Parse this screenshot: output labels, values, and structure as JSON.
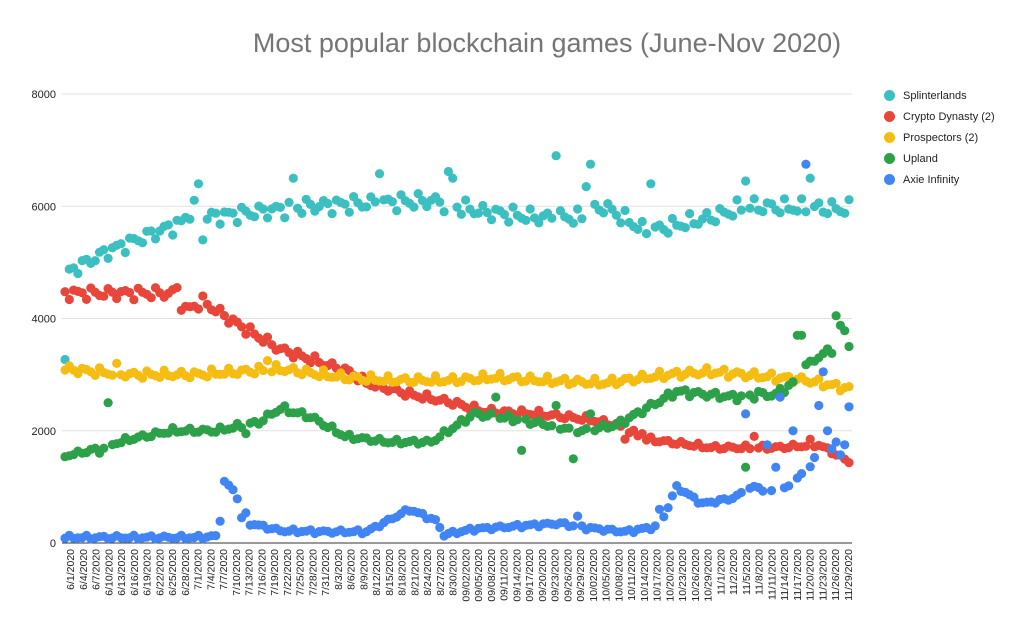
{
  "chart_data": {
    "type": "scatter",
    "title": "Most popular blockchain games (June-Nov 2020)",
    "xlabel": "",
    "ylabel": "",
    "ylim": [
      0,
      8000
    ],
    "y_ticks": [
      "0",
      "2000",
      "4000",
      "6000",
      "8000"
    ],
    "x_range": [
      "2020-06-01",
      "2020-11-30"
    ],
    "x_tick_labels": [
      "6/1/2020",
      "6/4/2020",
      "6/7/2020",
      "6/10/2020",
      "6/13/2020",
      "6/16/2020",
      "6/19/2020",
      "6/22/2020",
      "6/25/2020",
      "6/28/2020",
      "7/1/2020",
      "7/4/2020",
      "7/7/2020",
      "7/10/2020",
      "7/13/2020",
      "7/16/2020",
      "7/19/2020",
      "7/22/2020",
      "7/25/2020",
      "7/28/2020",
      "7/31/2020",
      "8/3/2020",
      "8/6/2020",
      "8/9/2020",
      "8/12/2020",
      "8/15/2020",
      "8/18/2020",
      "8/21/2020",
      "8/24/2020",
      "8/27/2020",
      "8/30/2020",
      "09/02/2020",
      "09/05/2020",
      "09/08/2020",
      "09/11/2020",
      "09/14/2020",
      "09/17/2020",
      "09/20/2020",
      "09/23/2020",
      "09/26/2020",
      "09/29/2020",
      "10/02/2020",
      "10/05/2020",
      "10/08/2020",
      "10/11/2020",
      "10/14/2020",
      "10/17/2020",
      "10/20/2020",
      "10/23/2020",
      "10/26/2020",
      "10/29/2020",
      "11/1/2020",
      "11/2/2020",
      "11/5/2020",
      "11/8/2020",
      "11/11/2020",
      "11/14/2020",
      "11/17/2020",
      "11/20/2020",
      "11/23/2020",
      "11/26/2020",
      "11/29/2020"
    ],
    "grid": true,
    "legend_position": "right",
    "series": [
      {
        "name": "Splinterlands",
        "color": "#3CBFC0",
        "anchors": [
          [
            0,
            4800
          ],
          [
            10,
            5200
          ],
          [
            20,
            5500
          ],
          [
            27,
            5700
          ],
          [
            30,
            6000
          ],
          [
            32,
            5800
          ],
          [
            45,
            5900
          ],
          [
            56,
            6000
          ],
          [
            70,
            6050
          ],
          [
            85,
            6100
          ],
          [
            97,
            5900
          ],
          [
            110,
            5800
          ],
          [
            120,
            5800
          ],
          [
            125,
            6000
          ],
          [
            135,
            5550
          ],
          [
            150,
            5800
          ],
          [
            158,
            6000
          ],
          [
            182,
            5950
          ]
        ],
        "spikes": [
          [
            0,
            3270
          ],
          [
            31,
            6400
          ],
          [
            32,
            5400
          ],
          [
            53,
            6500
          ],
          [
            73,
            6580
          ],
          [
            89,
            6620
          ],
          [
            90,
            6500
          ],
          [
            114,
            6900
          ],
          [
            121,
            6350
          ],
          [
            122,
            6750
          ],
          [
            136,
            6400
          ],
          [
            158,
            6450
          ],
          [
            173,
            6500
          ]
        ]
      },
      {
        "name": "Crypto Dynasty (2)",
        "color": "#E8463A",
        "anchors": [
          [
            0,
            4450
          ],
          [
            10,
            4450
          ],
          [
            25,
            4450
          ],
          [
            28,
            4150
          ],
          [
            32,
            4300
          ],
          [
            40,
            3900
          ],
          [
            50,
            3450
          ],
          [
            60,
            3200
          ],
          [
            66,
            3050
          ],
          [
            70,
            2850
          ],
          [
            80,
            2650
          ],
          [
            90,
            2500
          ],
          [
            97,
            2350
          ],
          [
            110,
            2300
          ],
          [
            122,
            2200
          ],
          [
            128,
            2100
          ],
          [
            135,
            1850
          ],
          [
            150,
            1700
          ],
          [
            165,
            1700
          ],
          [
            175,
            1750
          ],
          [
            182,
            1450
          ]
        ],
        "spikes": [
          [
            26,
            4550
          ],
          [
            130,
            1850
          ],
          [
            134,
            1950
          ],
          [
            160,
            1900
          ],
          [
            173,
            1850
          ]
        ]
      },
      {
        "name": "Prospectors (2)",
        "color": "#F5BD12",
        "anchors": [
          [
            0,
            3100
          ],
          [
            15,
            3000
          ],
          [
            30,
            3000
          ],
          [
            40,
            3050
          ],
          [
            50,
            3100
          ],
          [
            60,
            3000
          ],
          [
            65,
            2950
          ],
          [
            75,
            2900
          ],
          [
            90,
            2900
          ],
          [
            100,
            2950
          ],
          [
            110,
            2900
          ],
          [
            125,
            2850
          ],
          [
            140,
            3000
          ],
          [
            150,
            3050
          ],
          [
            165,
            2950
          ],
          [
            172,
            2900
          ],
          [
            182,
            2750
          ]
        ],
        "spikes": [
          [
            12,
            3200
          ],
          [
            47,
            3250
          ]
        ]
      },
      {
        "name": "Upland",
        "color": "#2CA14A",
        "anchors": [
          [
            0,
            1550
          ],
          [
            6,
            1650
          ],
          [
            15,
            1850
          ],
          [
            25,
            2000
          ],
          [
            35,
            2000
          ],
          [
            45,
            2150
          ],
          [
            50,
            2400
          ],
          [
            57,
            2250
          ],
          [
            65,
            1900
          ],
          [
            75,
            1800
          ],
          [
            85,
            1800
          ],
          [
            95,
            2300
          ],
          [
            105,
            2200
          ],
          [
            120,
            2000
          ],
          [
            128,
            2100
          ],
          [
            135,
            2400
          ],
          [
            142,
            2700
          ],
          [
            155,
            2600
          ],
          [
            165,
            2650
          ],
          [
            170,
            2900
          ],
          [
            172,
            3150
          ],
          [
            178,
            3450
          ],
          [
            180,
            3850
          ],
          [
            182,
            3600
          ]
        ],
        "spikes": [
          [
            8,
            1600
          ],
          [
            10,
            2500
          ],
          [
            42,
            1950
          ],
          [
            100,
            2600
          ],
          [
            106,
            1650
          ],
          [
            114,
            2450
          ],
          [
            118,
            1500
          ],
          [
            122,
            2300
          ],
          [
            158,
            1350
          ],
          [
            161,
            2700
          ],
          [
            170,
            3700
          ],
          [
            171,
            3700
          ],
          [
            175,
            3300
          ],
          [
            179,
            4050
          ]
        ]
      },
      {
        "name": "Axie Infinity",
        "color": "#4185F4",
        "anchors": [
          [
            0,
            100
          ],
          [
            10,
            100
          ],
          [
            20,
            100
          ],
          [
            30,
            100
          ],
          [
            35,
            120
          ],
          [
            38,
            1000
          ],
          [
            40,
            800
          ],
          [
            43,
            350
          ],
          [
            50,
            220
          ],
          [
            60,
            200
          ],
          [
            70,
            200
          ],
          [
            80,
            600
          ],
          [
            86,
            400
          ],
          [
            88,
            150
          ],
          [
            95,
            250
          ],
          [
            105,
            300
          ],
          [
            115,
            350
          ],
          [
            120,
            280
          ],
          [
            130,
            200
          ],
          [
            138,
            300
          ],
          [
            142,
            1000
          ],
          [
            148,
            700
          ],
          [
            155,
            800
          ],
          [
            160,
            1000
          ],
          [
            165,
            900
          ],
          [
            168,
            1000
          ],
          [
            172,
            1300
          ],
          [
            176,
            1700
          ],
          [
            180,
            1600
          ],
          [
            182,
            2400
          ]
        ],
        "spikes": [
          [
            37,
            1100
          ],
          [
            39,
            950
          ],
          [
            41,
            450
          ],
          [
            119,
            480
          ],
          [
            138,
            600
          ],
          [
            158,
            2300
          ],
          [
            163,
            1750
          ],
          [
            165,
            1350
          ],
          [
            166,
            2600
          ],
          [
            169,
            2000
          ],
          [
            172,
            6750
          ],
          [
            175,
            2450
          ],
          [
            176,
            3050
          ],
          [
            177,
            2000
          ],
          [
            179,
            1800
          ],
          [
            181,
            1750
          ]
        ]
      }
    ]
  }
}
